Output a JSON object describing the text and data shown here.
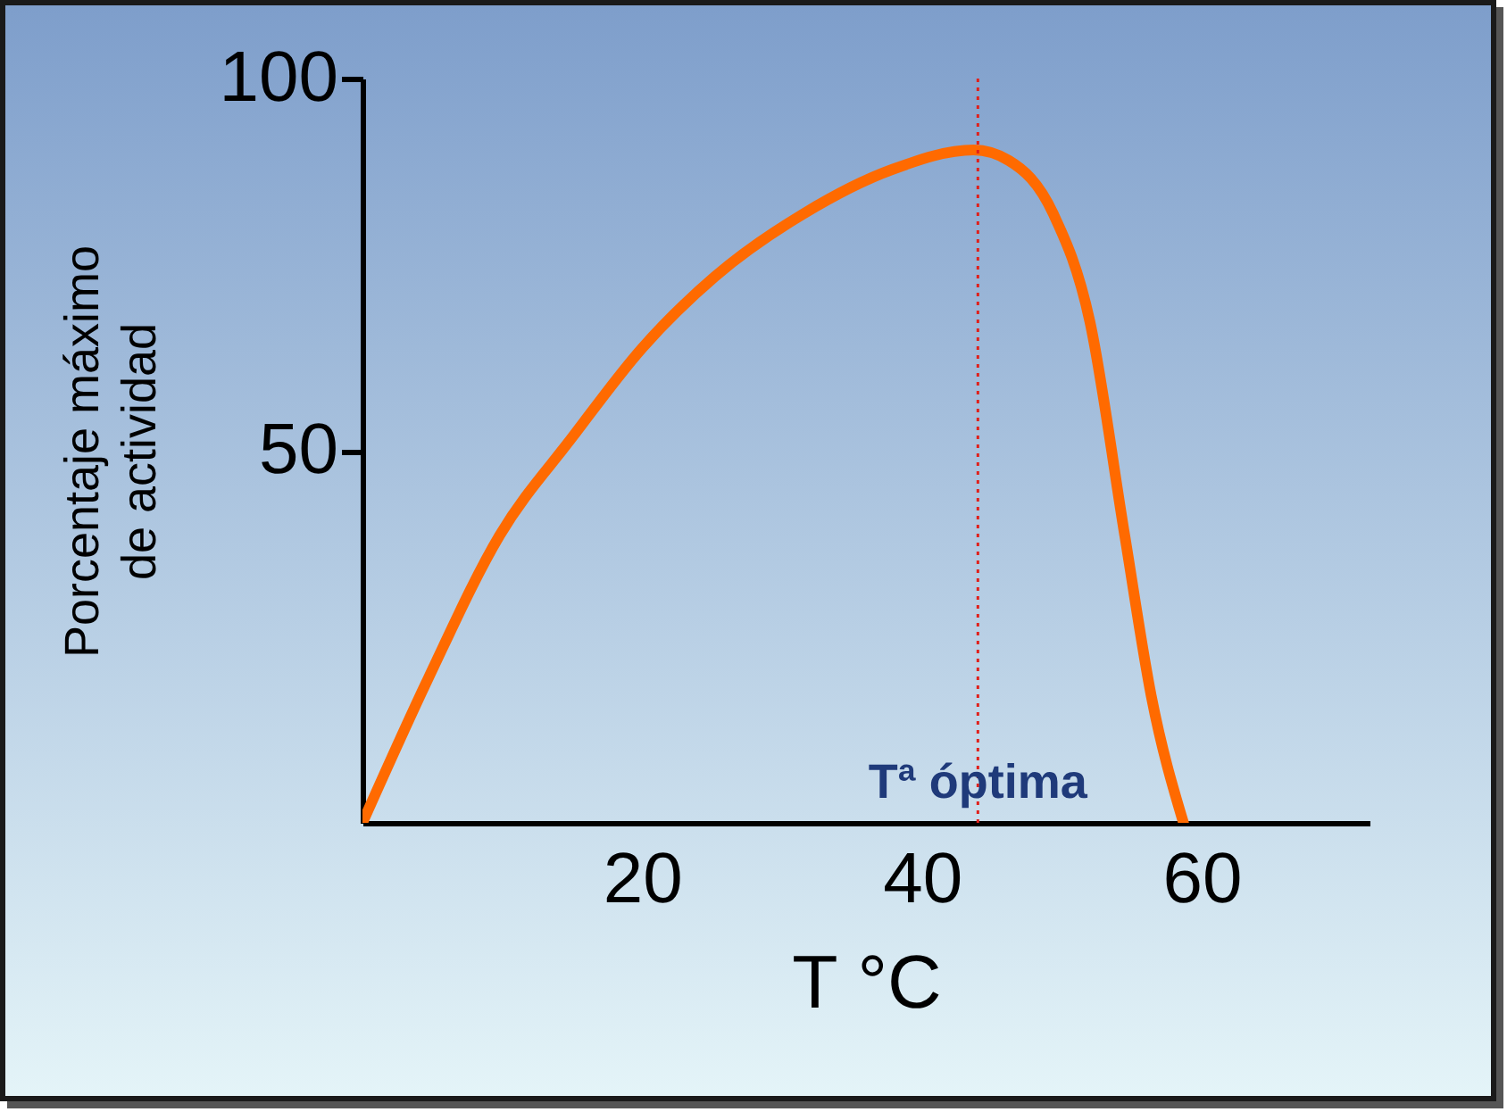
{
  "chart_data": {
    "type": "line",
    "xlabel": "T °C",
    "ylabel": "Porcentaje máximo de actividad",
    "x": [
      0,
      4.7,
      9.8,
      15,
      20,
      25.2,
      31.5,
      37.9,
      43.7,
      46.2,
      49.4,
      52,
      54.5,
      56.4,
      58.7
    ],
    "series": [
      {
        "color": "#ff6a00",
        "values": [
          0,
          19.4,
          38.6,
          51.8,
          63.8,
          73.4,
          81.8,
          87.8,
          90.4,
          89,
          81.8,
          67.4,
          38.6,
          17,
          0
        ]
      }
    ],
    "xlim": [
      0,
      72
    ],
    "xticks": [
      20,
      40,
      60
    ],
    "ylim": [
      0,
      100
    ],
    "yticks": [
      50,
      100
    ],
    "ref_lines": [
      {
        "axis": "x",
        "value": 44,
        "label": "Tª óptima",
        "color": "#e0201b",
        "line_style": "dotted"
      }
    ],
    "grid": false,
    "legend": false,
    "marker": "none",
    "line_style": "solid"
  }
}
